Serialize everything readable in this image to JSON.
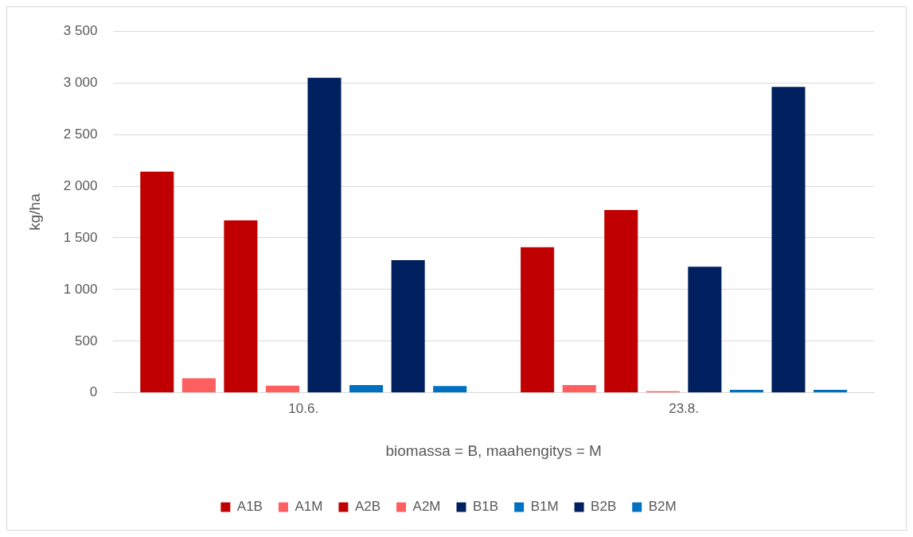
{
  "chart_data": {
    "type": "bar",
    "xlabel": "biomassa = B, maahengitys = M",
    "ylabel": "kg/ha",
    "categories": [
      "10.6.",
      "23.8."
    ],
    "series": [
      {
        "name": "A1B",
        "color": "#c00000",
        "values": [
          2140,
          1410
        ]
      },
      {
        "name": "A1M",
        "color": "#ff5f5f",
        "values": [
          140,
          75
        ]
      },
      {
        "name": "A2B",
        "color": "#c00000",
        "values": [
          1670,
          1770
        ]
      },
      {
        "name": "A2M",
        "color": "#ff5f5f",
        "values": [
          70,
          15
        ]
      },
      {
        "name": "B1B",
        "color": "#002060",
        "values": [
          3050,
          1220
        ]
      },
      {
        "name": "B1M",
        "color": "#0070c0",
        "values": [
          75,
          30
        ]
      },
      {
        "name": "B2B",
        "color": "#002060",
        "values": [
          1285,
          2960
        ]
      },
      {
        "name": "B2M",
        "color": "#0070c0",
        "values": [
          65,
          30
        ]
      }
    ],
    "ylim": [
      0,
      3500
    ],
    "yticks": [
      {
        "value": 0,
        "label": "0"
      },
      {
        "value": 500,
        "label": "500"
      },
      {
        "value": 1000,
        "label": "1 000"
      },
      {
        "value": 1500,
        "label": "1 500"
      },
      {
        "value": 2000,
        "label": "2 000"
      },
      {
        "value": 2500,
        "label": "2 500"
      },
      {
        "value": 3000,
        "label": "3 000"
      },
      {
        "value": 3500,
        "label": "3 500"
      }
    ],
    "grid": "y",
    "legend": "bottom"
  }
}
